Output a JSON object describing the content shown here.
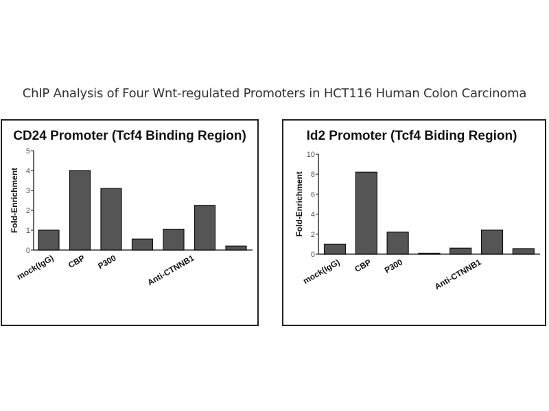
{
  "title": "ChIP Analysis of Four Wnt-regulated Promoters in HCT116 Human Colon Carcinoma",
  "chart_data": [
    {
      "type": "bar",
      "title": "CD24 Promoter (Tcf4 Binding Region)",
      "ylabel": "Fold-Enrichment",
      "ylim": [
        0,
        5
      ],
      "yticks": [
        "0",
        "1",
        "2",
        "3",
        "4",
        "5"
      ],
      "categories": [
        "mock(IgG)",
        "CBP",
        "P300",
        "",
        "",
        "Anti-CTNNB1",
        ""
      ],
      "xtick_labels": [
        {
          "label": "mock(IgG)",
          "index": 0
        },
        {
          "label": "CBP",
          "index": 1
        },
        {
          "label": "P300",
          "index": 2
        },
        {
          "label": "Anti-CTNNB1",
          "index": 4.5
        }
      ],
      "values": [
        1.0,
        4.0,
        3.1,
        0.55,
        1.05,
        2.25,
        0.2
      ],
      "bar_color": "#555555",
      "grid": false
    },
    {
      "type": "bar",
      "title": "Id2 Promoter (Tcf4 Biding Region)",
      "ylabel": "Fold-Enrichment",
      "ylim": [
        0,
        10
      ],
      "yticks": [
        "0",
        "2",
        "4",
        "6",
        "8",
        "10"
      ],
      "categories": [
        "mock(IgG)",
        "CBP",
        "P300",
        "",
        "",
        "Anti-CTNNB1",
        ""
      ],
      "xtick_labels": [
        {
          "label": "mock(IgG)",
          "index": 0
        },
        {
          "label": "CBP",
          "index": 1
        },
        {
          "label": "P300",
          "index": 2
        },
        {
          "label": "Anti-CTNNB1",
          "index": 4.5
        }
      ],
      "values": [
        1.0,
        8.2,
        2.2,
        0.1,
        0.6,
        2.4,
        0.55
      ],
      "bar_color": "#555555",
      "grid": false
    }
  ]
}
